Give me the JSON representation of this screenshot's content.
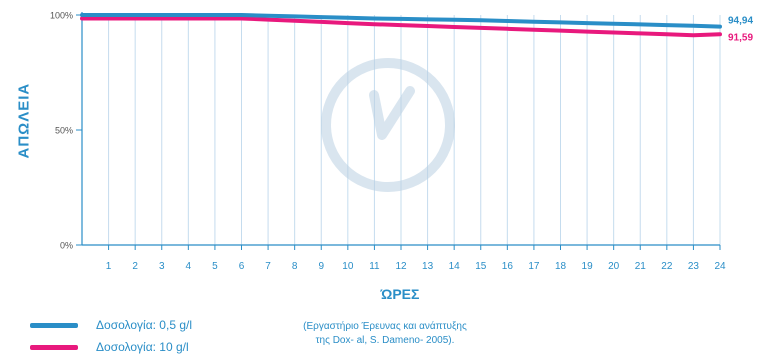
{
  "chart_data": {
    "type": "line",
    "xlabel": "ΏΡΕΣ",
    "ylabel": "ΑΠΩΛΕΙΑ",
    "x": [
      0,
      1,
      2,
      3,
      4,
      5,
      6,
      7,
      8,
      9,
      10,
      11,
      12,
      13,
      14,
      15,
      16,
      17,
      18,
      19,
      20,
      21,
      22,
      23,
      24
    ],
    "x_tick_labels": [
      "1",
      "2",
      "3",
      "4",
      "5",
      "6",
      "7",
      "8",
      "9",
      "10",
      "11",
      "12",
      "13",
      "14",
      "15",
      "16",
      "17",
      "18",
      "19",
      "20",
      "21",
      "22",
      "23",
      "24"
    ],
    "y_tick_labels": [
      "100%",
      "50%",
      "0%"
    ],
    "ylim": [
      0,
      100
    ],
    "grid": true,
    "series": [
      {
        "name": "Δοσολογία: 0,5 g/l",
        "color": "#2a8ec7",
        "values": [
          100,
          100,
          100,
          100,
          100,
          100,
          100,
          99.7,
          99.4,
          99.1,
          98.8,
          98.5,
          98.3,
          98.1,
          97.9,
          97.7,
          97.4,
          97.1,
          96.8,
          96.5,
          96.2,
          95.9,
          95.6,
          95.3,
          94.94
        ],
        "end_label": "94,94"
      },
      {
        "name": "Δοσολογία: 10 g/l",
        "color": "#e8197d",
        "values": [
          98.5,
          98.5,
          98.5,
          98.5,
          98.5,
          98.5,
          98.5,
          98.0,
          97.5,
          97.0,
          96.5,
          96.0,
          95.6,
          95.2,
          94.8,
          94.4,
          94.0,
          93.6,
          93.2,
          92.8,
          92.4,
          92.0,
          91.6,
          91.2,
          91.59
        ],
        "end_label": "91,59"
      }
    ]
  },
  "legend": [
    {
      "label": "Δοσολογία: 0,5 g/l",
      "color": "#2a8ec7"
    },
    {
      "label": "Δοσολογία: 10 g/l",
      "color": "#e8197d"
    }
  ],
  "source_note": {
    "line1": "(Εργαστήριο Έρευνας και ανάπτυξης",
    "line2": "της Dox- al, S. Dameno- 2005)."
  },
  "colors": {
    "grid": "#c5dcee",
    "axis": "#2a8ec7",
    "watermark": "#b9cfe2"
  },
  "watermark_icon": "clock-check-icon"
}
